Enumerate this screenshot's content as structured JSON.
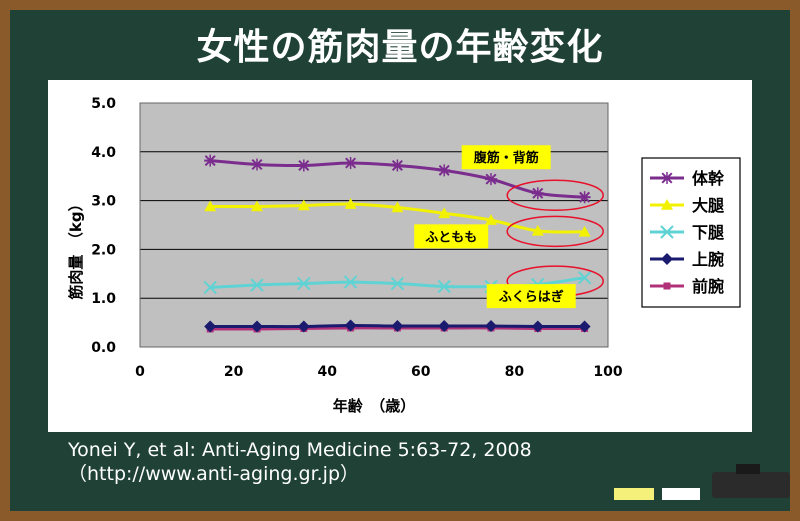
{
  "title": "女性の筋肉量の年齢変化",
  "citation_line1": "Yonei Y, et al: Anti-Aging Medicine 5:63-72, 2008",
  "citation_line2": "（http://www.anti-aging.gr.jp）",
  "chart_data": {
    "type": "line",
    "title": "",
    "xlabel": "年齢　（歳）",
    "ylabel": "筋肉量　（kg）",
    "xlim": [
      0,
      100
    ],
    "ylim": [
      0,
      5
    ],
    "xticks": [
      "0",
      "20",
      "40",
      "60",
      "80",
      "100"
    ],
    "yticks": [
      "0.0",
      "1.0",
      "2.0",
      "3.0",
      "4.0",
      "5.0"
    ],
    "grid": "horizontal",
    "plot_background": "#c0c0c0",
    "legend_position": "right",
    "x": [
      15,
      25,
      35,
      45,
      55,
      65,
      75,
      85,
      95
    ],
    "series": [
      {
        "name": "体幹",
        "color": "#7b2d8e",
        "marker": "asterisk",
        "values": [
          3.82,
          3.74,
          3.72,
          3.77,
          3.72,
          3.62,
          3.44,
          3.15,
          3.07
        ]
      },
      {
        "name": "大腿",
        "color": "#f2f200",
        "marker": "triangle",
        "values": [
          2.88,
          2.88,
          2.9,
          2.93,
          2.86,
          2.74,
          2.6,
          2.38,
          2.36
        ]
      },
      {
        "name": "下腿",
        "color": "#5fd3d3",
        "marker": "x",
        "values": [
          1.22,
          1.27,
          1.3,
          1.33,
          1.3,
          1.24,
          1.24,
          1.28,
          1.42
        ]
      },
      {
        "name": "上腕",
        "color": "#1a1a6e",
        "marker": "diamond",
        "values": [
          0.42,
          0.42,
          0.42,
          0.44,
          0.43,
          0.43,
          0.43,
          0.42,
          0.42
        ]
      },
      {
        "name": "前腕",
        "color": "#b0307a",
        "marker": "square",
        "values": [
          0.37,
          0.37,
          0.38,
          0.39,
          0.39,
          0.39,
          0.39,
          0.38,
          0.38
        ]
      }
    ],
    "annotations": [
      {
        "text": "腹筋・背筋",
        "series": "体幹",
        "box_color": "#ffff00"
      },
      {
        "text": "ふともも",
        "series": "大腿",
        "box_color": "#ffff00"
      },
      {
        "text": "ふくらはぎ",
        "series": "下腿",
        "box_color": "#ffff00"
      }
    ],
    "highlight_color": "#e8102a"
  }
}
